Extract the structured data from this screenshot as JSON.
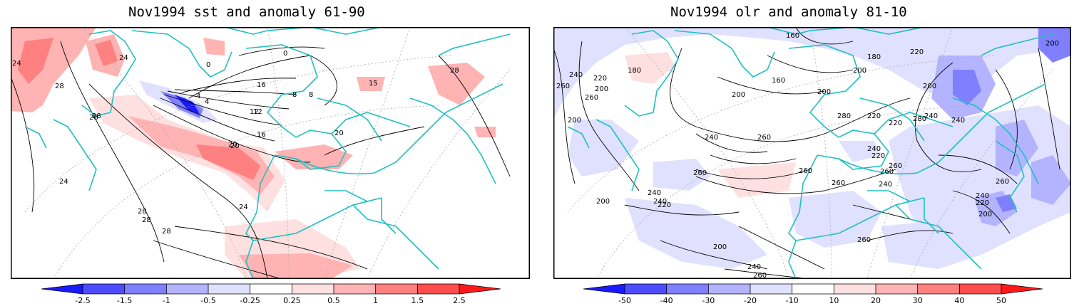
{
  "panels": [
    {
      "title": "Nov1994 sst and anomaly 61-90",
      "contour_labels": [
        "24",
        "24",
        "28",
        "28",
        "24",
        "0",
        "0",
        "4",
        "8",
        "12",
        "16",
        "20",
        "20",
        "16",
        "12",
        "8",
        "4",
        "28",
        "20",
        "28",
        "24",
        "28",
        "28",
        "15",
        "28"
      ],
      "colorbar": {
        "labels": [
          "-2.5",
          "-1.5",
          "-1",
          "-0.5",
          "-0.25",
          "0.25",
          "0.5",
          "1",
          "1.5",
          "2.5"
        ],
        "colors": [
          "#1a1aff",
          "#4d4dff",
          "#8080ff",
          "#b3b3ff",
          "#e0e0ff",
          "#ffffff",
          "#ffe0e0",
          "#ffb3b3",
          "#ff8080",
          "#ff4d4d",
          "#ff1a1a"
        ]
      }
    },
    {
      "title": "Nov1994 olr and anomaly 81-10",
      "contour_labels": [
        "260",
        "240",
        "220",
        "260",
        "200",
        "200",
        "180",
        "160",
        "180",
        "200",
        "160",
        "200",
        "200",
        "220",
        "200",
        "200",
        "280",
        "240",
        "220",
        "240",
        "220",
        "240",
        "260",
        "260",
        "240",
        "260",
        "260",
        "220",
        "260",
        "240",
        "220",
        "200",
        "240",
        "260",
        "260",
        "200",
        "240",
        "260",
        "280",
        "240",
        "260",
        "240",
        "200",
        "220"
      ],
      "colorbar": {
        "labels": [
          "-50",
          "-40",
          "-30",
          "-20",
          "-10",
          "10",
          "20",
          "30",
          "40",
          "50"
        ],
        "colors": [
          "#1a1aff",
          "#4d4dff",
          "#8080ff",
          "#b3b3ff",
          "#e0e0ff",
          "#ffffff",
          "#ffe0e0",
          "#ffb3b3",
          "#ff8080",
          "#ff4d4d",
          "#ff1a1a"
        ]
      }
    }
  ],
  "colors": {
    "coastline": "#20c0c0",
    "contour": "#000000",
    "grid": "#aaaaaa"
  }
}
